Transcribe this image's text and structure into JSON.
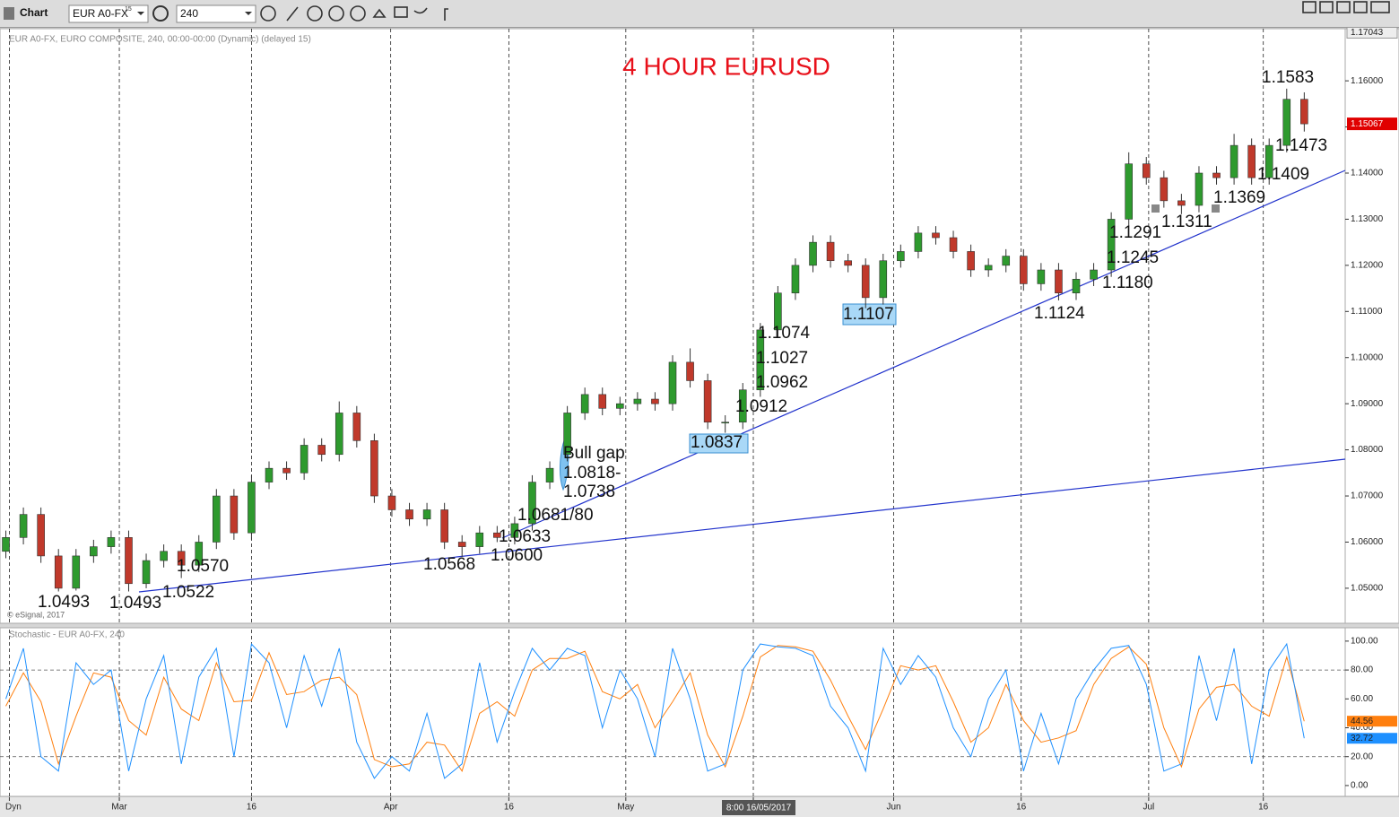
{
  "toolbar": {
    "title": "Chart",
    "symbol": "EUR A0-FX",
    "symbol_delay": "15",
    "interval": "240"
  },
  "chart_data": [
    {
      "type": "candlestick",
      "title": "4 HOUR EURUSD",
      "header": "EUR A0-FX, EURO COMPOSITE, 240, 00:00-00:00 (Dynamic) (delayed 15)",
      "credit": "© eSignal, 2017",
      "up_color": "#2e9a2e",
      "down_color": "#c0392b",
      "x": [
        0.5,
        2,
        3.5,
        5,
        6.5,
        8,
        9.5,
        11,
        12.5,
        14,
        15.5,
        17,
        18.5,
        20,
        21.5,
        23,
        24.5,
        26,
        27.5,
        29,
        30.5,
        32,
        33.5,
        35,
        36.5,
        38,
        39.5,
        41,
        42.5,
        44,
        45.5,
        47,
        48.5,
        50,
        51.5,
        53,
        54.5,
        56,
        57.5,
        59,
        60.5,
        62,
        63.5,
        65,
        66.5,
        68,
        69.5,
        71,
        72.5,
        74,
        75.5,
        77,
        78.5,
        80,
        81.5,
        83,
        84.5,
        86,
        87.5,
        89,
        90.5,
        92,
        93.5,
        95,
        96.5,
        98,
        99.5,
        101,
        102.5,
        104,
        105.5,
        107,
        108.5,
        110,
        111.5
      ],
      "open": [
        1.058,
        1.061,
        1.066,
        1.057,
        1.05,
        1.057,
        1.059,
        1.061,
        1.051,
        1.056,
        1.058,
        1.055,
        1.06,
        1.07,
        1.062,
        1.073,
        1.076,
        1.075,
        1.081,
        1.079,
        1.088,
        1.082,
        1.07,
        1.067,
        1.065,
        1.067,
        1.06,
        1.059,
        1.062,
        1.061,
        1.064,
        1.073,
        1.079,
        1.088,
        1.092,
        1.089,
        1.09,
        1.091,
        1.09,
        1.099,
        1.095,
        1.086,
        1.086,
        1.093,
        1.106,
        1.114,
        1.12,
        1.125,
        1.121,
        1.12,
        1.113,
        1.121,
        1.123,
        1.127,
        1.126,
        1.123,
        1.119,
        1.12,
        1.122,
        1.116,
        1.119,
        1.114,
        1.117,
        1.119,
        1.13,
        1.142,
        1.139,
        1.134,
        1.133,
        1.14,
        1.139,
        1.146,
        1.139,
        1.146,
        1.156
      ],
      "high": [
        1.0625,
        1.0675,
        1.0675,
        1.0585,
        1.0585,
        1.0605,
        1.0625,
        1.0625,
        1.0575,
        1.0595,
        1.0595,
        1.0615,
        1.0715,
        1.0715,
        1.0745,
        1.0775,
        1.0775,
        1.0825,
        1.0825,
        1.0905,
        1.0895,
        1.0835,
        1.0715,
        1.0685,
        1.0685,
        1.0685,
        1.0615,
        1.0635,
        1.0635,
        1.0655,
        1.0745,
        1.0775,
        1.0895,
        1.0935,
        1.0935,
        1.0915,
        1.0925,
        1.0925,
        1.1005,
        1.102,
        1.0965,
        1.0875,
        1.0945,
        1.1075,
        1.1155,
        1.1215,
        1.1265,
        1.1265,
        1.1225,
        1.1215,
        1.1225,
        1.1245,
        1.1285,
        1.1285,
        1.1275,
        1.1245,
        1.1215,
        1.1235,
        1.1235,
        1.1205,
        1.1205,
        1.1185,
        1.1205,
        1.1315,
        1.1445,
        1.1435,
        1.1405,
        1.1355,
        1.1415,
        1.1415,
        1.1485,
        1.1475,
        1.1475,
        1.1583,
        1.1575
      ],
      "low": [
        1.0565,
        1.0595,
        1.0555,
        1.0493,
        1.0495,
        1.0555,
        1.0575,
        1.0493,
        1.05,
        1.0545,
        1.0522,
        1.0535,
        1.0585,
        1.0605,
        1.0605,
        1.0715,
        1.0735,
        1.0735,
        1.0775,
        1.0775,
        1.0805,
        1.0685,
        1.0655,
        1.0635,
        1.0635,
        1.0585,
        1.0568,
        1.0575,
        1.06,
        1.0595,
        1.0625,
        1.0715,
        1.0775,
        1.0865,
        1.0875,
        1.0875,
        1.0885,
        1.0885,
        1.0885,
        1.0935,
        1.0845,
        1.0837,
        1.0845,
        1.0915,
        1.1045,
        1.1125,
        1.1185,
        1.1195,
        1.1185,
        1.1107,
        1.1115,
        1.1195,
        1.1215,
        1.1245,
        1.1215,
        1.1175,
        1.1175,
        1.1185,
        1.1145,
        1.1145,
        1.1124,
        1.1125,
        1.1155,
        1.1175,
        1.1285,
        1.1375,
        1.1325,
        1.1311,
        1.1315,
        1.1375,
        1.1375,
        1.1375,
        1.1375,
        1.1445,
        1.149
      ],
      "close": [
        1.061,
        1.066,
        1.057,
        1.05,
        1.057,
        1.059,
        1.061,
        1.051,
        1.056,
        1.058,
        1.055,
        1.06,
        1.07,
        1.062,
        1.073,
        1.076,
        1.075,
        1.081,
        1.079,
        1.088,
        1.082,
        1.07,
        1.067,
        1.065,
        1.067,
        1.06,
        1.059,
        1.062,
        1.061,
        1.064,
        1.073,
        1.076,
        1.088,
        1.092,
        1.089,
        1.09,
        1.091,
        1.09,
        1.099,
        1.095,
        1.086,
        1.086,
        1.093,
        1.106,
        1.114,
        1.12,
        1.125,
        1.121,
        1.12,
        1.113,
        1.121,
        1.123,
        1.127,
        1.126,
        1.123,
        1.119,
        1.12,
        1.122,
        1.116,
        1.119,
        1.114,
        1.117,
        1.119,
        1.13,
        1.142,
        1.139,
        1.134,
        1.133,
        1.14,
        1.139,
        1.146,
        1.139,
        1.146,
        1.156,
        1.15067
      ],
      "xlim": [
        0,
        115
      ],
      "ylim": [
        1.0424,
        1.1713
      ],
      "top_tag": 1.17043,
      "yticks": [
        {
          "value": 1.05,
          "label": "1.05000"
        },
        {
          "value": 1.06,
          "label": "1.06000"
        },
        {
          "value": 1.07,
          "label": "1.07000"
        },
        {
          "value": 1.08,
          "label": "1.08000"
        },
        {
          "value": 1.09,
          "label": "1.09000"
        },
        {
          "value": 1.1,
          "label": "1.10000"
        },
        {
          "value": 1.11,
          "label": "1.11000"
        },
        {
          "value": 1.12,
          "label": "1.12000"
        },
        {
          "value": 1.13,
          "label": "1.13000"
        },
        {
          "value": 1.14,
          "label": "1.14000"
        },
        {
          "value": 1.15,
          "label": "1.15000"
        },
        {
          "value": 1.16,
          "label": "1.16000"
        }
      ],
      "annotations": [
        "1.0493",
        "1.0493",
        "1.0522",
        "1.0570",
        "1.0568",
        "1.0600",
        "1.0633",
        "1.0681/80",
        "Bull gap",
        "1.0818-",
        "1.0738",
        "1.0837",
        "1.0912",
        "1.0962",
        "1.1027",
        "1.1074",
        "1.1107",
        "1.1124",
        "1.1180",
        "1.1245",
        "1.1291",
        "1.1311",
        "1.1369",
        "1.1409",
        "1.1473",
        "1.1583"
      ]
    },
    {
      "type": "line",
      "title": "Stochastic - EUR A0-FX, 240",
      "crosshair_label": "8:00 16/05/2017",
      "mode_label": "Dyn",
      "x": [
        0.5,
        2,
        3.5,
        5,
        6.5,
        8,
        9.5,
        11,
        12.5,
        14,
        15.5,
        17,
        18.5,
        20,
        21.5,
        23,
        24.5,
        26,
        27.5,
        29,
        30.5,
        32,
        33.5,
        35,
        36.5,
        38,
        39.5,
        41,
        42.5,
        44,
        45.5,
        47,
        48.5,
        50,
        51.5,
        53,
        54.5,
        56,
        57.5,
        59,
        60.5,
        62,
        63.5,
        65,
        66.5,
        68,
        69.5,
        71,
        72.5,
        74,
        75.5,
        77,
        78.5,
        80,
        81.5,
        83,
        84.5,
        86,
        87.5,
        89,
        90.5,
        92,
        93.5,
        95,
        96.5,
        98,
        99.5,
        101,
        102.5,
        104,
        105.5,
        107,
        108.5,
        110,
        111.5
      ],
      "series": [
        {
          "color": "#ff7f0e",
          "values": [
            55,
            78,
            58,
            15,
            48,
            78,
            75,
            45,
            35,
            75,
            53,
            45,
            85,
            58,
            59,
            92,
            63,
            65,
            73,
            75,
            63,
            18,
            13,
            15,
            30,
            28,
            10,
            50,
            58,
            48,
            80,
            88,
            88,
            93,
            65,
            60,
            70,
            40,
            58,
            78,
            35,
            13,
            48,
            89,
            97,
            96,
            93,
            73,
            48,
            25,
            53,
            83,
            80,
            83,
            58,
            30,
            40,
            70,
            45,
            30,
            33,
            38,
            70,
            88,
            96,
            84,
            40,
            13,
            53,
            68,
            70,
            55,
            48,
            89,
            44.56
          ]
        },
        {
          "color": "#1e90ff",
          "values": [
            60,
            95,
            20,
            10,
            85,
            70,
            80,
            10,
            60,
            90,
            15,
            75,
            95,
            20,
            98,
            85,
            40,
            90,
            55,
            95,
            30,
            5,
            20,
            10,
            50,
            5,
            15,
            85,
            30,
            65,
            95,
            80,
            95,
            90,
            40,
            80,
            60,
            20,
            95,
            60,
            10,
            15,
            80,
            98,
            96,
            95,
            90,
            55,
            40,
            10,
            95,
            70,
            90,
            75,
            40,
            20,
            60,
            80,
            10,
            50,
            15,
            60,
            80,
            95,
            97,
            70,
            10,
            15,
            90,
            45,
            95,
            15,
            80,
            98,
            32.72
          ]
        }
      ],
      "xlim": [
        0,
        115
      ],
      "ylim": [
        -7.5,
        108
      ],
      "yticks": [
        {
          "value": 0,
          "label": "0.00"
        },
        {
          "value": 20,
          "label": "20.00"
        },
        {
          "value": 40,
          "label": "40.00"
        },
        {
          "value": 60,
          "label": "60.00"
        },
        {
          "value": 80,
          "label": "80.00"
        },
        {
          "value": 100,
          "label": "100.00"
        }
      ],
      "levels": [
        20,
        80
      ],
      "xticks": [
        {
          "value": 0.8,
          "label": null
        },
        {
          "value": 10.2,
          "label": "Mar"
        },
        {
          "value": 21.5,
          "label": "16"
        },
        {
          "value": 33.4,
          "label": "Apr"
        },
        {
          "value": 43.5,
          "label": "16"
        },
        {
          "value": 53.5,
          "label": "May"
        },
        {
          "value": 64.4,
          "label": null
        },
        {
          "value": 76.4,
          "label": "Jun"
        },
        {
          "value": 87.3,
          "label": "16"
        },
        {
          "value": 98.2,
          "label": "Jul"
        },
        {
          "value": 108.0,
          "label": "16"
        }
      ]
    }
  ]
}
